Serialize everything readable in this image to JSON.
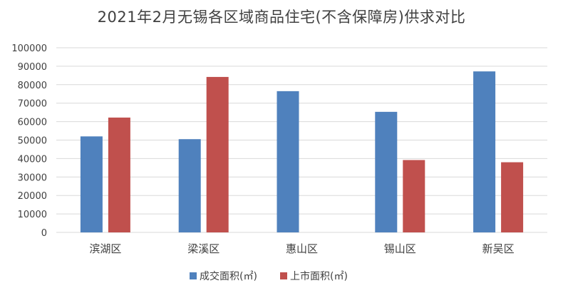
{
  "chart_data": {
    "type": "bar",
    "title": "2021年2月无锡各区域商品住宅(不含保障房)供求对比",
    "categories": [
      "滨湖区",
      "梁溪区",
      "惠山区",
      "锡山区",
      "新吴区"
    ],
    "series": [
      {
        "name": "成交面积(㎡)",
        "color": "#4f81bd",
        "values": [
          52000,
          50500,
          76500,
          65300,
          87200
        ]
      },
      {
        "name": "上市面积(㎡)",
        "color": "#c0504d",
        "values": [
          62200,
          84200,
          null,
          39200,
          38000
        ]
      }
    ],
    "ylim": [
      0,
      100000
    ],
    "yticks": [
      0,
      10000,
      20000,
      30000,
      40000,
      50000,
      60000,
      70000,
      80000,
      90000,
      100000
    ],
    "xlabel": "",
    "ylabel": "",
    "grid": true,
    "legend_position": "bottom"
  }
}
